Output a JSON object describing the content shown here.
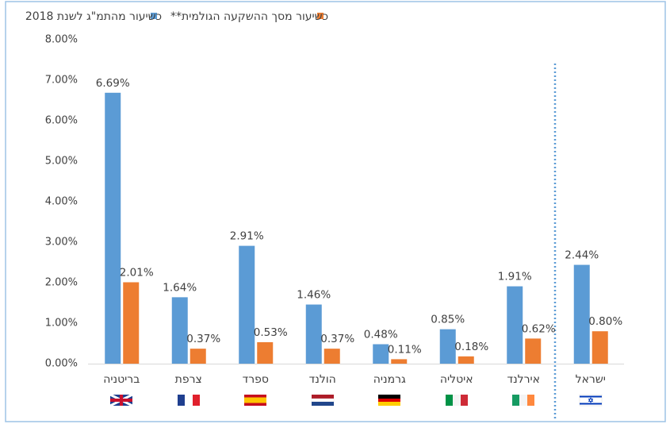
{
  "chart_data": {
    "type": "bar",
    "categories": [
      "בריטניה",
      "צרפת",
      "ספרד",
      "הולנד",
      "גרמניה",
      "איטליה",
      "אירלנד",
      "ישראל"
    ],
    "series": [
      {
        "name": "כשיעור מהתמ\"ג לשנת 2018",
        "color": "#5b9bd5",
        "values": [
          6.69,
          1.64,
          2.91,
          1.46,
          0.48,
          0.85,
          1.91,
          2.44
        ],
        "value_labels": [
          "6.69%",
          "1.64%",
          "2.91%",
          "1.46%",
          "0.48%",
          "0.85%",
          "1.91%",
          "2.44%"
        ]
      },
      {
        "name": "כשיעור מסך ההשקעה הגולמית**",
        "color": "#ed7d31",
        "values": [
          2.01,
          0.37,
          0.53,
          0.37,
          0.11,
          0.18,
          0.62,
          0.8
        ],
        "value_labels": [
          "2.01%",
          "0.37%",
          "0.53%",
          "0.37%",
          "0.11%",
          "0.18%",
          "0.62%",
          "0.80%"
        ]
      }
    ],
    "ylim": [
      0,
      8
    ],
    "yticks": [
      {
        "value": 0,
        "label": "0.00%"
      },
      {
        "value": 1,
        "label": "1.00%"
      },
      {
        "value": 2,
        "label": "2.00%"
      },
      {
        "value": 3,
        "label": "3.00%"
      },
      {
        "value": 4,
        "label": "4.00%"
      },
      {
        "value": 5,
        "label": "5.00%"
      },
      {
        "value": 6,
        "label": "6.00%"
      },
      {
        "value": 7,
        "label": "7.00%"
      },
      {
        "value": 8,
        "label": "8.00%"
      }
    ],
    "grid": false
  }
}
